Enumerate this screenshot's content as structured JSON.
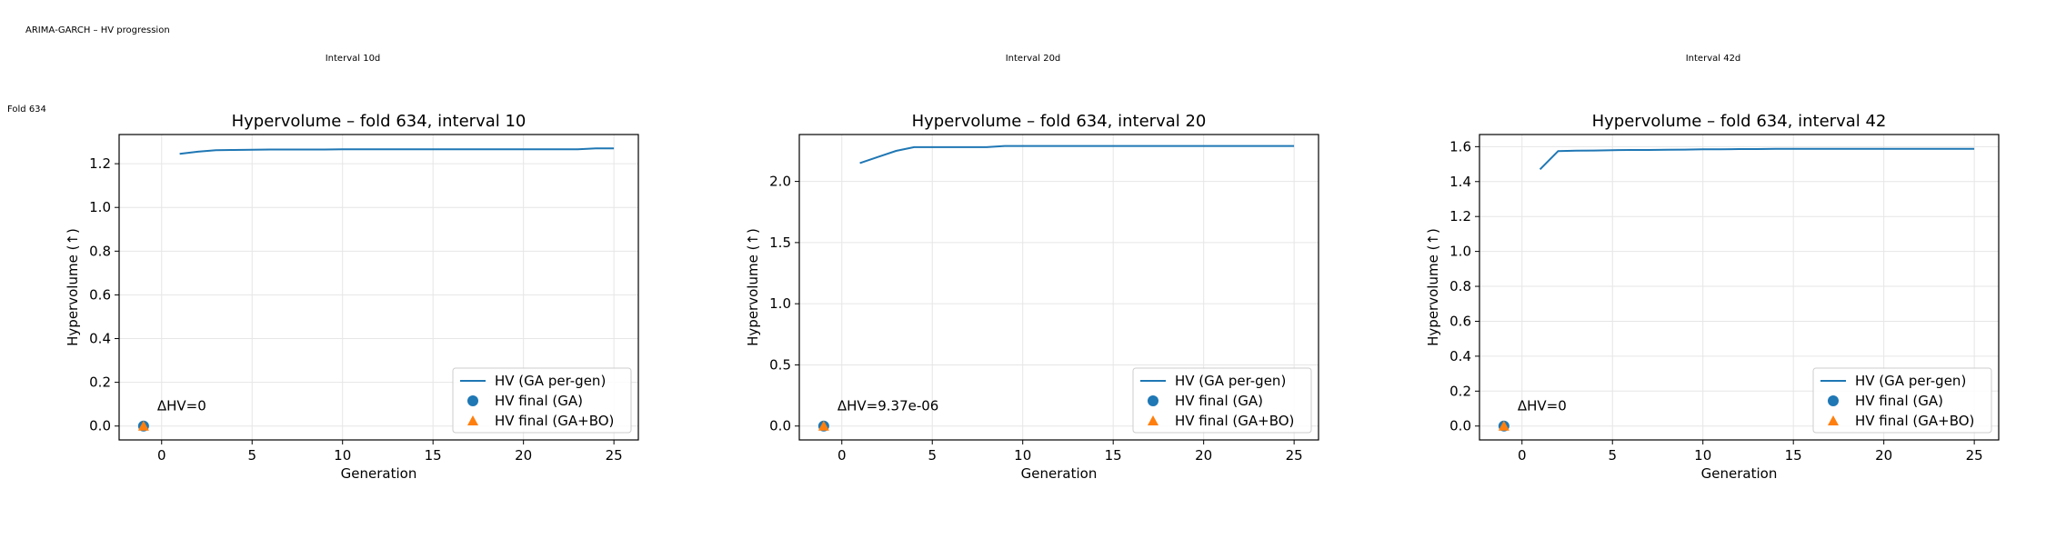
{
  "suptitle": "ARIMA‑GARCH – HV progression",
  "row_label": "Fold 634",
  "column_titles": [
    "Interval 10d",
    "Interval 20d",
    "Interval 42d"
  ],
  "colors": {
    "ga_line": "#1f77b4",
    "ga_final": "#1f77b4",
    "gabo_final": "#ff7f0e",
    "grid": "#e6e6e6"
  },
  "legend_labels": {
    "line": "HV (GA per-gen)",
    "ga_final": "HV final (GA)",
    "gabo_final": "HV final (GA+BO)"
  },
  "chart_data": [
    {
      "type": "line",
      "title": "Hypervolume – fold 634, interval 10",
      "xlabel": "Generation",
      "ylabel": "Hypervolume (↑)",
      "xlim": [
        -2.35,
        26.35
      ],
      "ylim": [
        -0.0635,
        1.3335
      ],
      "xticks": [
        0,
        5,
        10,
        15,
        20,
        25
      ],
      "yticks": [
        0.0,
        0.2,
        0.4,
        0.6,
        0.8,
        1.0,
        1.2
      ],
      "ytick_labels": [
        "0.0",
        "0.2",
        "0.4",
        "0.6",
        "0.8",
        "1.0",
        "1.2"
      ],
      "grid": true,
      "legend": "lower-right",
      "series": [
        {
          "name": "HV (GA per-gen)",
          "x": [
            1,
            2,
            3,
            4,
            5,
            6,
            7,
            8,
            9,
            10,
            11,
            12,
            13,
            14,
            15,
            16,
            17,
            18,
            19,
            20,
            21,
            22,
            23,
            24,
            25
          ],
          "y": [
            1.245,
            1.255,
            1.262,
            1.263,
            1.264,
            1.265,
            1.265,
            1.265,
            1.265,
            1.266,
            1.266,
            1.266,
            1.266,
            1.266,
            1.266,
            1.266,
            1.266,
            1.266,
            1.266,
            1.266,
            1.266,
            1.266,
            1.266,
            1.27,
            1.27
          ]
        }
      ],
      "final_points": {
        "x": -1,
        "ga": 0.0,
        "gabo": 0.0
      },
      "annotation": "ΔHV=0"
    },
    {
      "type": "line",
      "title": "Hypervolume – fold 634, interval 20",
      "xlabel": "Generation",
      "ylabel": "Hypervolume (↑)",
      "xlim": [
        -2.35,
        26.35
      ],
      "ylim": [
        -0.1135,
        2.3835
      ],
      "xticks": [
        0,
        5,
        10,
        15,
        20,
        25
      ],
      "yticks": [
        0.0,
        0.5,
        1.0,
        1.5,
        2.0
      ],
      "ytick_labels": [
        "0.0",
        "0.5",
        "1.0",
        "1.5",
        "2.0"
      ],
      "grid": true,
      "legend": "lower-right",
      "series": [
        {
          "name": "HV (GA per-gen)",
          "x": [
            1,
            2,
            3,
            4,
            5,
            6,
            7,
            8,
            9,
            10,
            11,
            12,
            13,
            14,
            15,
            16,
            17,
            18,
            19,
            20,
            21,
            22,
            23,
            24,
            25
          ],
          "y": [
            2.15,
            2.2,
            2.25,
            2.28,
            2.28,
            2.28,
            2.28,
            2.28,
            2.29,
            2.29,
            2.29,
            2.29,
            2.29,
            2.29,
            2.29,
            2.29,
            2.29,
            2.29,
            2.29,
            2.29,
            2.29,
            2.29,
            2.29,
            2.29,
            2.29
          ]
        }
      ],
      "final_points": {
        "x": -1,
        "ga": 0.0,
        "gabo": 0.0
      },
      "annotation": "ΔHV=9.37e-06"
    },
    {
      "type": "line",
      "title": "Hypervolume – fold 634, interval 42",
      "xlabel": "Generation",
      "ylabel": "Hypervolume (↑)",
      "xlim": [
        -2.35,
        26.35
      ],
      "ylim": [
        -0.0795,
        1.6695
      ],
      "xticks": [
        0,
        5,
        10,
        15,
        20,
        25
      ],
      "yticks": [
        0.0,
        0.2,
        0.4,
        0.6,
        0.8,
        1.0,
        1.2,
        1.4,
        1.6
      ],
      "ytick_labels": [
        "0.0",
        "0.2",
        "0.4",
        "0.6",
        "0.8",
        "1.0",
        "1.2",
        "1.4",
        "1.6"
      ],
      "grid": true,
      "legend": "lower-right",
      "series": [
        {
          "name": "HV (GA per-gen)",
          "x": [
            1,
            2,
            3,
            4,
            5,
            6,
            7,
            8,
            9,
            10,
            11,
            12,
            13,
            14,
            15,
            16,
            17,
            18,
            19,
            20,
            21,
            22,
            23,
            24,
            25
          ],
          "y": [
            1.47,
            1.575,
            1.577,
            1.578,
            1.58,
            1.581,
            1.581,
            1.582,
            1.583,
            1.585,
            1.585,
            1.586,
            1.586,
            1.587,
            1.587,
            1.587,
            1.587,
            1.588,
            1.588,
            1.588,
            1.588,
            1.588,
            1.588,
            1.588,
            1.588
          ]
        }
      ],
      "final_points": {
        "x": -1,
        "ga": 0.0,
        "gabo": 0.0
      },
      "annotation": "ΔHV=0"
    }
  ]
}
